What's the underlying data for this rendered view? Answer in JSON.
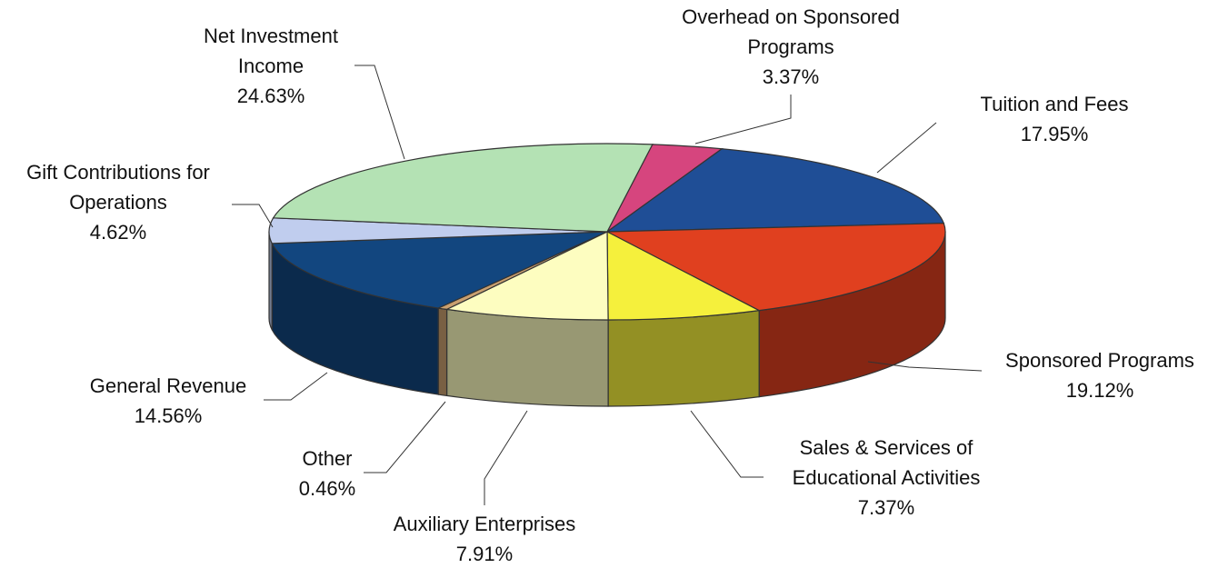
{
  "chart_data": {
    "type": "pie3d",
    "categories": [
      "Overhead on Sponsored Programs",
      "Tuition and Fees",
      "Sponsored Programs",
      "Sales & Services of Educational Activities",
      "Auxiliary Enterprises",
      "Other",
      "General Revenue",
      "Gift Contributions for Operations",
      "Net Investment Income"
    ],
    "values": [
      3.37,
      17.95,
      19.12,
      7.37,
      7.91,
      0.46,
      14.56,
      4.62,
      24.63
    ],
    "value_labels": [
      "3.37%",
      "17.95%",
      "19.12%",
      "7.37%",
      "7.91%",
      "0.46%",
      "14.56%",
      "4.62%",
      "24.63%"
    ],
    "colors": [
      "#d6457e",
      "#1f4e96",
      "#e0401f",
      "#f5f03c",
      "#fdfdc0",
      "#c9a070",
      "#12467f",
      "#c0cdee",
      "#b4e2b4"
    ]
  }
}
